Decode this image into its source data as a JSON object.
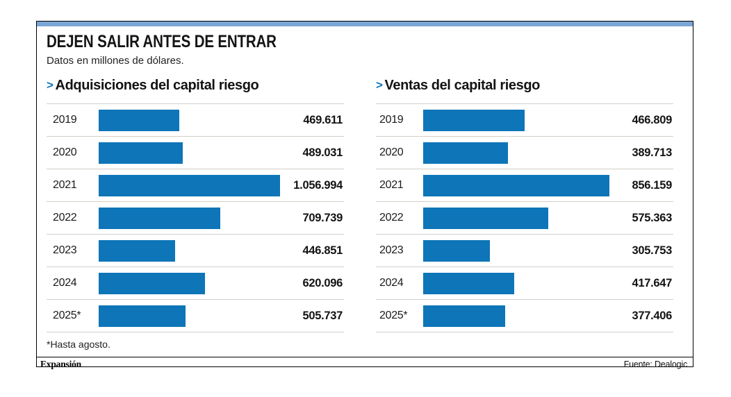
{
  "panel": {
    "title": "DEJEN SALIR ANTES DE ENTRAR",
    "subtitle": "Datos en millones de dólares.",
    "footnote": "*Hasta agosto.",
    "brand": "Expansión",
    "source": "Fuente: Dealogic",
    "accent_bar_color": "#7aa6d6",
    "bar_color": "#0d75b8",
    "separator_color": "#d2cfc8"
  },
  "chart_data": [
    {
      "type": "bar",
      "orientation": "horizontal",
      "title": "Adquisiciones del capital riesgo",
      "unit": "millones de dólares",
      "categories": [
        "2019",
        "2020",
        "2021",
        "2022",
        "2023",
        "2024",
        "2025*"
      ],
      "values": [
        469611,
        489031,
        1056994,
        709739,
        446851,
        620096,
        505737
      ],
      "value_labels": [
        "469.611",
        "489.031",
        "1.056.994",
        "709.739",
        "446.851",
        "620.096",
        "505.737"
      ],
      "xlim": [
        0,
        1056994
      ],
      "grid": false,
      "legend": false
    },
    {
      "type": "bar",
      "orientation": "horizontal",
      "title": "Ventas del capital riesgo",
      "unit": "millones de dólares",
      "categories": [
        "2019",
        "2020",
        "2021",
        "2022",
        "2023",
        "2024",
        "2025*"
      ],
      "values": [
        466809,
        389713,
        856159,
        575363,
        305753,
        417647,
        377406
      ],
      "value_labels": [
        "466.809",
        "389.713",
        "856.159",
        "575.363",
        "305.753",
        "417.647",
        "377.406"
      ],
      "xlim": [
        0,
        856159
      ],
      "grid": false,
      "legend": false
    }
  ]
}
